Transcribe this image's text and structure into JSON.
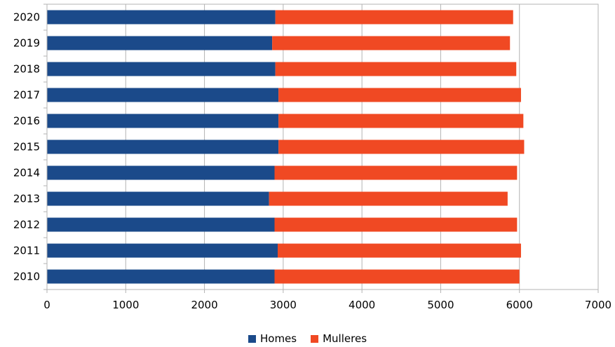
{
  "chart_data": {
    "type": "bar",
    "orientation": "horizontal",
    "stacked": true,
    "categories": [
      "2020",
      "2019",
      "2018",
      "2017",
      "2016",
      "2015",
      "2014",
      "2013",
      "2012",
      "2011",
      "2010"
    ],
    "series": [
      {
        "name": "Homes",
        "color": "#1b4a8a",
        "values": [
          2900,
          2860,
          2900,
          2940,
          2940,
          2940,
          2890,
          2820,
          2890,
          2930,
          2890
        ]
      },
      {
        "name": "Mulleres",
        "color": "#f04923",
        "values": [
          3020,
          3020,
          3060,
          3080,
          3110,
          3120,
          3080,
          3030,
          3080,
          3090,
          3110
        ]
      }
    ],
    "xlim": [
      0,
      7000
    ],
    "xticks": [
      "0",
      "1000",
      "2000",
      "3000",
      "4000",
      "5000",
      "6000",
      "7000"
    ],
    "grid": "vertical",
    "legend_position": "bottom"
  }
}
